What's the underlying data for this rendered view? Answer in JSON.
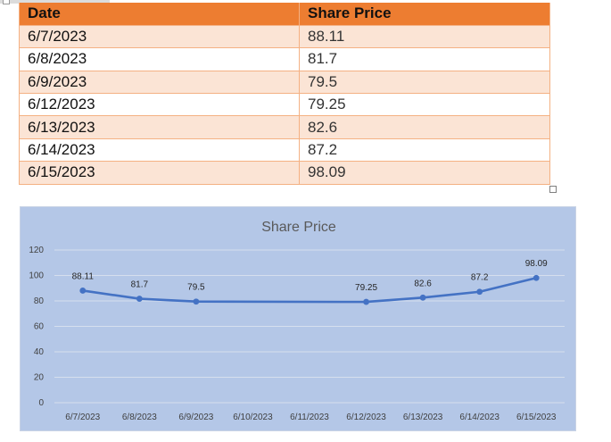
{
  "table": {
    "headers": [
      "Date",
      "Share Price"
    ],
    "rows": [
      [
        "6/7/2023",
        "88.11"
      ],
      [
        "6/8/2023",
        "81.7"
      ],
      [
        "6/9/2023",
        "79.5"
      ],
      [
        "6/12/2023",
        "79.25"
      ],
      [
        "6/13/2023",
        "82.6"
      ],
      [
        "6/14/2023",
        "87.2"
      ],
      [
        "6/15/2023",
        "98.09"
      ]
    ],
    "header_color": "#ED7D31",
    "band_color": "#FBE4D5"
  },
  "chart_data": {
    "type": "line",
    "title": "Share Price",
    "categories": [
      "6/7/2023",
      "6/8/2023",
      "6/9/2023",
      "6/10/2023",
      "6/11/2023",
      "6/12/2023",
      "6/13/2023",
      "6/14/2023",
      "6/15/2023"
    ],
    "series": [
      {
        "values": [
          88.11,
          81.7,
          79.5,
          null,
          null,
          79.25,
          82.6,
          87.2,
          98.09
        ],
        "data_labels": [
          "88.11",
          "81.7",
          "79.5",
          "",
          "",
          "79.25",
          "82.6",
          "87.2",
          "98.09"
        ],
        "color": "#4472C4"
      }
    ],
    "ylim": [
      0,
      120
    ],
    "yticks": [
      "0",
      "20",
      "40",
      "60",
      "80",
      "100",
      "120"
    ],
    "grid": true,
    "background": "#B4C7E7",
    "gaps": "connected"
  }
}
